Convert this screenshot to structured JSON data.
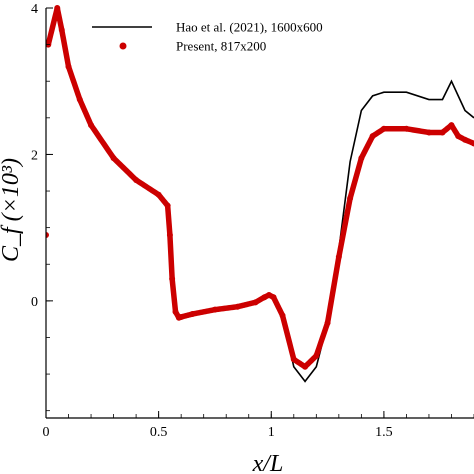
{
  "chart_data": {
    "type": "line",
    "title": "",
    "xlabel": "x/L",
    "ylabel": "C_f (×10³)",
    "xlim": [
      0,
      1.9
    ],
    "ylim": [
      -1.6,
      4
    ],
    "grid": false,
    "legend_position": "top-right",
    "x_ticks": [
      {
        "value": 0,
        "label": "0"
      },
      {
        "value": 0.5,
        "label": "0.5"
      },
      {
        "value": 1,
        "label": "1"
      },
      {
        "value": 1.5,
        "label": "1.5"
      }
    ],
    "y_ticks": [
      {
        "value": 0,
        "label": "0"
      },
      {
        "value": 2,
        "label": "2"
      },
      {
        "value": 4,
        "label": "4"
      }
    ],
    "series": [
      {
        "name": "Hao et al. (2021), 1600x600",
        "style": "line",
        "color": "#000000",
        "x": [
          0.05,
          0.07,
          0.1,
          0.15,
          0.2,
          0.3,
          0.4,
          0.5,
          0.54,
          0.55,
          0.56,
          0.575,
          0.59,
          0.6,
          0.65,
          0.75,
          0.85,
          0.93,
          0.97,
          0.99,
          1.01,
          1.05,
          1.1,
          1.15,
          1.2,
          1.25,
          1.3,
          1.35,
          1.4,
          1.45,
          1.5,
          1.6,
          1.7,
          1.76,
          1.8,
          1.83,
          1.86,
          1.9
        ],
        "y": [
          4.0,
          3.7,
          3.2,
          2.75,
          2.4,
          1.95,
          1.65,
          1.45,
          1.3,
          0.9,
          0.3,
          -0.15,
          -0.25,
          -0.22,
          -0.18,
          -0.12,
          -0.08,
          -0.02,
          0.05,
          0.1,
          0.05,
          -0.2,
          -0.9,
          -1.1,
          -0.9,
          -0.3,
          0.7,
          1.9,
          2.6,
          2.8,
          2.85,
          2.85,
          2.75,
          2.75,
          3.0,
          2.8,
          2.6,
          2.5
        ]
      },
      {
        "name": "Present, 817x200",
        "style": "markers",
        "color": "#cc0000",
        "x": [
          0.0,
          0.01,
          0.05,
          0.07,
          0.1,
          0.15,
          0.2,
          0.3,
          0.4,
          0.5,
          0.54,
          0.55,
          0.56,
          0.575,
          0.59,
          0.6,
          0.65,
          0.75,
          0.85,
          0.93,
          0.97,
          0.99,
          1.01,
          1.05,
          1.1,
          1.15,
          1.2,
          1.25,
          1.3,
          1.35,
          1.4,
          1.45,
          1.5,
          1.6,
          1.7,
          1.76,
          1.8,
          1.83,
          1.86,
          1.9
        ],
        "y": [
          0.9,
          3.5,
          4.0,
          3.7,
          3.2,
          2.75,
          2.4,
          1.95,
          1.65,
          1.45,
          1.3,
          0.9,
          0.3,
          -0.15,
          -0.23,
          -0.22,
          -0.18,
          -0.12,
          -0.08,
          -0.02,
          0.05,
          0.08,
          0.05,
          -0.2,
          -0.8,
          -0.9,
          -0.75,
          -0.3,
          0.6,
          1.4,
          1.95,
          2.25,
          2.35,
          2.35,
          2.3,
          2.3,
          2.4,
          2.25,
          2.2,
          2.15
        ]
      }
    ]
  }
}
